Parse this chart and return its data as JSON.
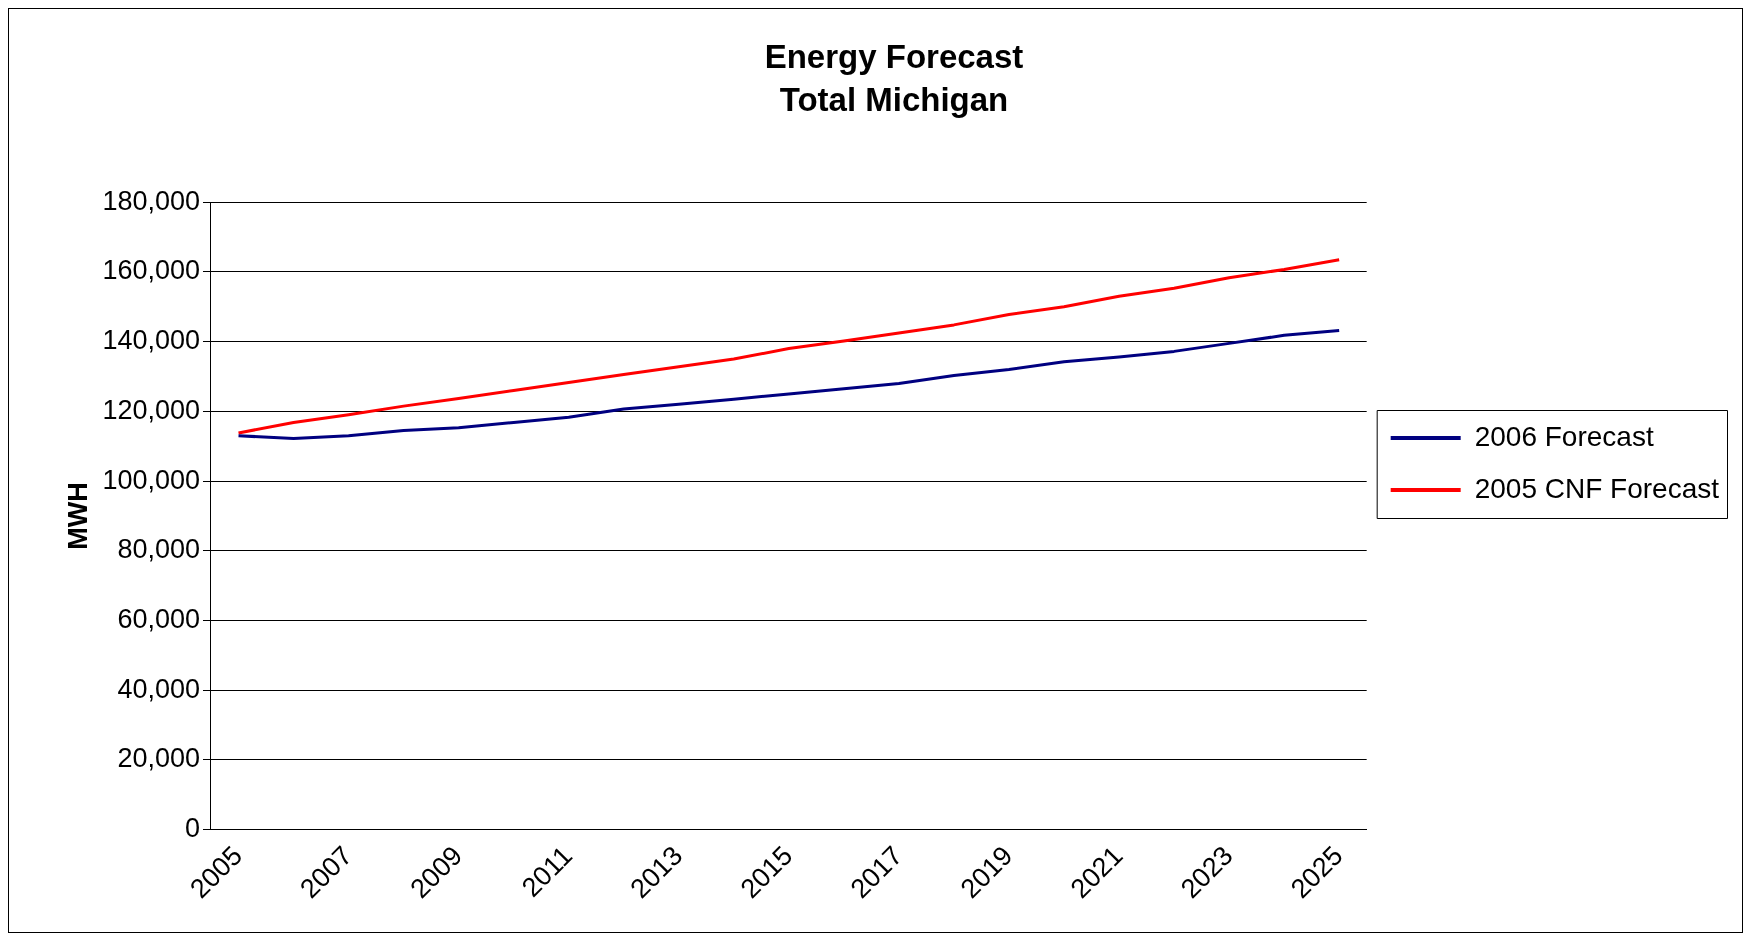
{
  "chart_data": {
    "type": "line",
    "title": "Energy Forecast",
    "subtitle": "Total Michigan",
    "ylabel": "MWH",
    "categories": [
      "2005",
      null,
      "2007",
      null,
      "2009",
      null,
      "2011",
      null,
      "2013",
      null,
      "2015",
      null,
      "2017",
      null,
      "2019",
      null,
      "2021",
      null,
      "2023",
      null,
      "2025"
    ],
    "series": [
      {
        "name": "2006 Forecast",
        "color": "#000080",
        "values": [
          113000,
          112200,
          113000,
          114500,
          115300,
          116800,
          118300,
          120700,
          122000,
          123500,
          125000,
          126500,
          128000,
          130300,
          132000,
          134200,
          135600,
          137200,
          139500,
          141800,
          143200
        ]
      },
      {
        "name": "2005 CNF Forecast",
        "color": "#ff0000",
        "values": [
          113800,
          116800,
          119000,
          121500,
          123700,
          126000,
          128300,
          130600,
          132800,
          135000,
          138000,
          140200,
          142500,
          144800,
          147800,
          150000,
          153000,
          155300,
          158300,
          160700,
          163500
        ]
      }
    ],
    "ylim": [
      0,
      180000
    ],
    "yticks": [
      0,
      {
        "value": 20000,
        "label": "20,000"
      },
      {
        "value": 40000,
        "label": "40,000"
      },
      {
        "value": 60000,
        "label": "60,000"
      },
      {
        "value": 80000,
        "label": "80,000"
      },
      {
        "value": 100000,
        "label": "100,000"
      },
      {
        "value": 120000,
        "label": "120,000"
      },
      {
        "value": 140000,
        "label": "140,000"
      },
      {
        "value": 160000,
        "label": "160,000"
      },
      {
        "value": 180000,
        "label": "180,000"
      }
    ],
    "grid": "y",
    "legend": "right",
    "marker": "none",
    "line_style": "solid"
  }
}
